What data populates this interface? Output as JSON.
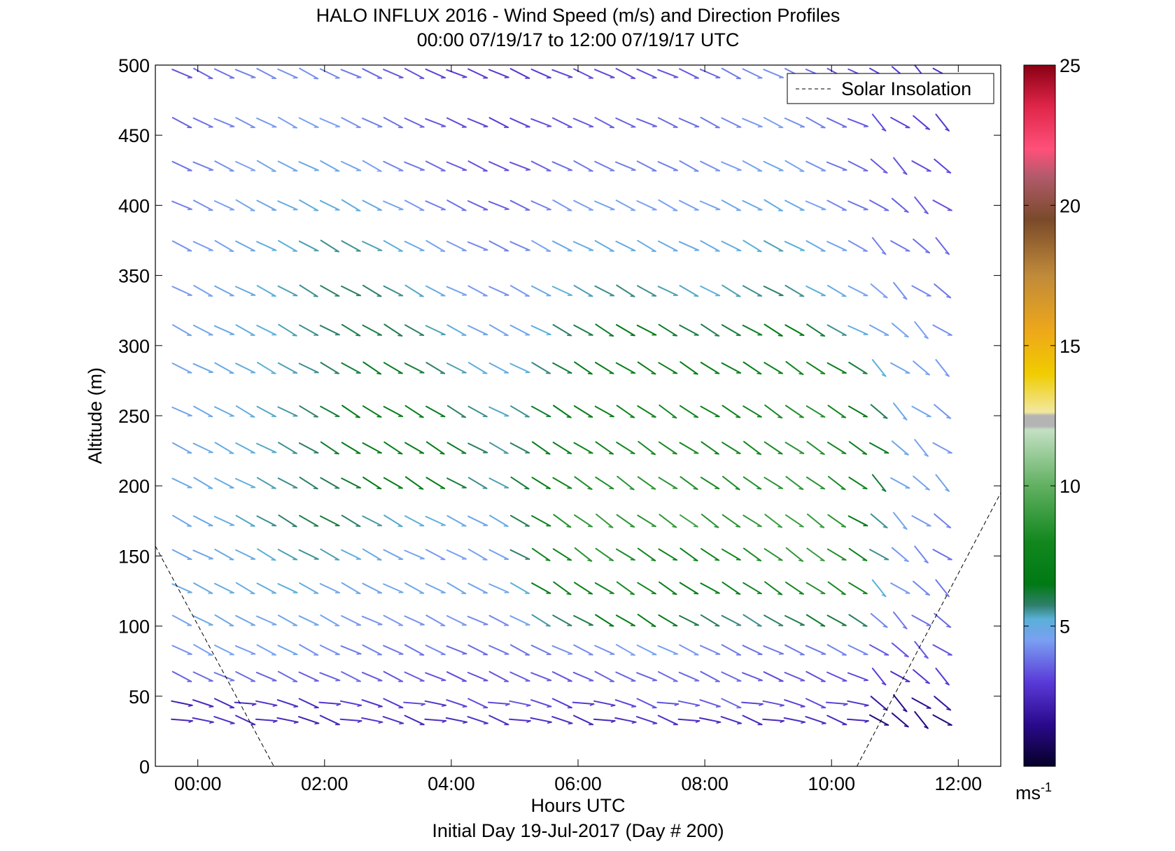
{
  "chart_data": {
    "type": "quiver",
    "title": "HALO INFLUX 2016 - Wind Speed (m/s) and Direction Profiles",
    "subtitle": "00:00 07/19/17 to 12:00 07/19/17  UTC",
    "xlabel": "Hours UTC",
    "xlabel2": "Initial Day 19-Jul-2017 (Day # 200)",
    "ylabel": "Altitude (m)",
    "xlim": [
      -0.67,
      12.67
    ],
    "ylim": [
      0,
      500
    ],
    "x_ticks": [
      0,
      2,
      4,
      6,
      8,
      10,
      12
    ],
    "x_tick_labels": [
      "00:00",
      "02:00",
      "04:00",
      "06:00",
      "08:00",
      "10:00",
      "12:00"
    ],
    "y_ticks": [
      0,
      50,
      100,
      150,
      200,
      250,
      300,
      350,
      400,
      450,
      500
    ],
    "y_tick_labels": [
      "0",
      "50",
      "100",
      "150",
      "200",
      "250",
      "300",
      "350",
      "400",
      "450",
      "500"
    ],
    "grid": false,
    "legend": {
      "entries": [
        "Solar Insolation"
      ],
      "location": "top-right"
    },
    "colorbar": {
      "range": [
        0,
        25
      ],
      "ticks": [
        5,
        10,
        15,
        20,
        25
      ],
      "tick_labels": [
        "5",
        "10",
        "15",
        "20",
        "25"
      ],
      "unit_label": "ms",
      "unit_exponent": "-1"
    },
    "altitudes": [
      33,
      45,
      64,
      83,
      104,
      127,
      151,
      175,
      202,
      227,
      253,
      284,
      311,
      339,
      371,
      400,
      428,
      459,
      494
    ],
    "time_hours": [
      -0.25,
      0.083,
      0.417,
      0.75,
      1.083,
      1.417,
      1.75,
      2.083,
      2.417,
      2.75,
      3.083,
      3.417,
      3.75,
      4.083,
      4.417,
      4.75,
      5.083,
      5.417,
      5.75,
      6.083,
      6.417,
      6.75,
      7.083,
      7.417,
      7.75,
      8.083,
      8.417,
      8.75,
      9.083,
      9.417,
      9.75,
      10.083,
      10.417,
      10.75,
      11.083,
      11.417,
      11.75
    ],
    "wind_speed_ms": [
      [
        2.4,
        2.6,
        2.6,
        2.5,
        2.6,
        2.4,
        2.2,
        2.3,
        2.7,
        2.8,
        2.6,
        2.4,
        2.6,
        2.5,
        2.6,
        2.6,
        2.7,
        2.6,
        2.5,
        2.4,
        2.4,
        2.6,
        2.7,
        2.6,
        2.6,
        2.5,
        2.5,
        2.4,
        2.5,
        2.6,
        2.5,
        2.4,
        2.4,
        1.2,
        1.5,
        1.3,
        1.2
      ],
      [
        2.2,
        2.4,
        2.5,
        2.6,
        2.8,
        2.6,
        2.5,
        2.8,
        3.0,
        2.7,
        2.9,
        3.2,
        2.7,
        3.1,
        3.2,
        3.2,
        3.3,
        3.2,
        2.9,
        2.9,
        2.8,
        3.1,
        3.3,
        3.3,
        3.4,
        3.4,
        3.6,
        3.1,
        3.2,
        3.0,
        3.2,
        3.1,
        2.7,
        1.9,
        1.5,
        1.6,
        1.8
      ],
      [
        3.5,
        3.6,
        3.8,
        3.6,
        3.5,
        3.6,
        3.4,
        3.5,
        3.6,
        3.4,
        3.3,
        3.4,
        3.3,
        3.2,
        3.2,
        3.3,
        3.4,
        3.4,
        3.3,
        3.4,
        3.5,
        3.5,
        3.5,
        3.6,
        3.6,
        3.5,
        3.6,
        3.4,
        3.2,
        3.3,
        3.2,
        3.2,
        3.1,
        3.0,
        2.6,
        2.8,
        2.9
      ],
      [
        4.1,
        4.3,
        4.4,
        4.2,
        4.4,
        4.6,
        4.1,
        4.1,
        3.8,
        3.9,
        3.8,
        3.7,
        4.0,
        3.6,
        3.6,
        3.8,
        3.7,
        3.8,
        4.1,
        4.0,
        4.1,
        4.3,
        4.4,
        4.4,
        4.2,
        4.0,
        3.8,
        3.7,
        3.8,
        3.8,
        3.8,
        3.9,
        4.0,
        3.4,
        3.3,
        3.4,
        3.3
      ],
      [
        4.4,
        4.7,
        4.7,
        4.6,
        4.5,
        4.7,
        4.6,
        4.4,
        4.2,
        4.1,
        4.2,
        4.1,
        4.1,
        4.2,
        4.0,
        4.0,
        4.5,
        5.5,
        5.8,
        6.1,
        6.5,
        6.8,
        6.7,
        6.4,
        6.1,
        5.9,
        5.7,
        5.6,
        5.8,
        6.0,
        6.3,
        6.2,
        5.9,
        4.0,
        3.8,
        3.7,
        3.6
      ],
      [
        4.8,
        4.8,
        5.0,
        4.9,
        5.1,
        5.2,
        4.9,
        4.6,
        4.6,
        4.5,
        4.6,
        4.7,
        4.6,
        4.7,
        4.5,
        4.6,
        5.2,
        6.6,
        7.3,
        7.5,
        7.8,
        8.2,
        7.6,
        7.1,
        6.9,
        7.0,
        7.2,
        7.4,
        7.7,
        8.0,
        8.3,
        8.1,
        7.5,
        5.2,
        4.2,
        4.0,
        3.8
      ],
      [
        4.6,
        4.6,
        4.8,
        4.9,
        5.2,
        5.4,
        5.6,
        5.4,
        5.0,
        4.8,
        4.6,
        4.4,
        4.2,
        4.3,
        4.4,
        4.6,
        5.8,
        7.6,
        8.0,
        8.5,
        8.6,
        8.2,
        7.9,
        7.6,
        7.4,
        7.7,
        8.0,
        8.2,
        8.6,
        8.8,
        9.0,
        8.3,
        7.4,
        5.6,
        4.2,
        4.0,
        3.7
      ],
      [
        4.7,
        4.8,
        5.0,
        5.3,
        5.6,
        5.8,
        6.0,
        6.2,
        5.8,
        5.5,
        5.3,
        5.1,
        5.0,
        4.8,
        4.7,
        4.9,
        6.0,
        7.2,
        8.4,
        8.8,
        8.9,
        8.6,
        8.6,
        8.8,
        9.2,
        8.5,
        8.6,
        8.8,
        9.0,
        9.1,
        9.0,
        8.6,
        6.5,
        5.6,
        4.5,
        4.2,
        3.9
      ],
      [
        4.8,
        4.8,
        4.9,
        5.1,
        5.4,
        5.6,
        5.8,
        6.0,
        6.3,
        6.6,
        6.8,
        7.0,
        6.8,
        6.2,
        5.6,
        5.4,
        6.2,
        7.0,
        7.8,
        8.2,
        8.4,
        8.6,
        8.7,
        8.6,
        8.4,
        8.1,
        8.2,
        8.4,
        8.6,
        8.7,
        8.6,
        8.2,
        7.5,
        6.2,
        4.6,
        4.5,
        4.6
      ],
      [
        4.6,
        4.7,
        4.9,
        5.1,
        5.3,
        5.6,
        5.9,
        6.3,
        6.6,
        6.9,
        7.0,
        6.9,
        6.7,
        6.4,
        5.9,
        5.5,
        5.9,
        6.8,
        7.2,
        7.6,
        7.8,
        8.0,
        8.1,
        8.1,
        8.0,
        7.8,
        7.8,
        7.9,
        8.2,
        8.6,
        8.4,
        8.0,
        7.3,
        6.4,
        4.6,
        4.4,
        4.2
      ],
      [
        4.6,
        4.7,
        4.9,
        5.0,
        5.3,
        5.5,
        5.8,
        6.2,
        6.5,
        6.7,
        6.8,
        6.8,
        6.4,
        5.9,
        5.6,
        5.3,
        5.6,
        6.3,
        6.7,
        7.0,
        7.4,
        7.7,
        7.8,
        7.8,
        7.6,
        7.4,
        7.3,
        7.4,
        7.8,
        8.2,
        8.4,
        7.8,
        6.9,
        5.9,
        4.7,
        4.5,
        4.2
      ],
      [
        4.5,
        4.7,
        4.8,
        5.0,
        5.2,
        5.4,
        5.6,
        5.9,
        6.2,
        6.4,
        6.4,
        6.2,
        5.8,
        5.4,
        5.0,
        4.9,
        5.1,
        5.7,
        6.2,
        6.6,
        6.9,
        7.2,
        7.3,
        7.2,
        7.0,
        6.8,
        6.9,
        7.1,
        7.5,
        7.8,
        7.6,
        7.1,
        6.2,
        5.2,
        4.6,
        4.4,
        4.2
      ],
      [
        4.4,
        4.6,
        4.8,
        5.0,
        5.2,
        5.4,
        5.6,
        5.8,
        6.0,
        6.1,
        6.0,
        5.8,
        5.4,
        5.0,
        4.6,
        4.5,
        4.6,
        5.2,
        5.8,
        6.1,
        6.3,
        6.5,
        6.5,
        6.3,
        6.1,
        6.0,
        6.2,
        6.4,
        6.7,
        6.6,
        6.2,
        5.6,
        5.0,
        4.6,
        4.4,
        4.3,
        4.1
      ],
      [
        4.2,
        4.4,
        4.6,
        4.9,
        5.2,
        5.4,
        5.6,
        5.8,
        5.9,
        5.8,
        5.6,
        5.3,
        4.9,
        4.5,
        4.2,
        4.1,
        4.2,
        4.7,
        5.2,
        5.4,
        5.6,
        5.7,
        5.6,
        5.4,
        5.3,
        5.2,
        5.4,
        5.6,
        5.8,
        5.6,
        5.2,
        4.8,
        4.5,
        4.3,
        4.1,
        4.0,
        3.8
      ],
      [
        4.1,
        4.3,
        4.5,
        4.7,
        5.0,
        5.2,
        5.4,
        5.6,
        5.6,
        5.4,
        5.1,
        4.8,
        4.5,
        4.2,
        4.0,
        3.9,
        4.0,
        4.3,
        4.7,
        4.9,
        5.0,
        5.0,
        4.9,
        4.8,
        4.8,
        4.8,
        5.0,
        5.2,
        5.4,
        5.2,
        4.8,
        4.4,
        4.1,
        3.9,
        3.8,
        3.7,
        3.6
      ],
      [
        3.9,
        4.1,
        4.3,
        4.5,
        4.7,
        4.9,
        5.0,
        5.1,
        5.0,
        4.8,
        4.5,
        4.2,
        3.9,
        3.7,
        3.5,
        3.5,
        3.6,
        3.9,
        4.2,
        4.3,
        4.4,
        4.4,
        4.3,
        4.3,
        4.3,
        4.4,
        4.6,
        4.8,
        5.0,
        4.8,
        4.4,
        4.0,
        3.8,
        3.6,
        3.5,
        3.4,
        3.3
      ],
      [
        3.7,
        3.9,
        4.1,
        4.3,
        4.5,
        4.6,
        4.7,
        4.7,
        4.5,
        4.3,
        4.0,
        3.8,
        3.6,
        3.4,
        3.3,
        3.2,
        3.3,
        3.5,
        3.7,
        3.8,
        3.9,
        3.9,
        3.9,
        3.9,
        4.0,
        4.1,
        4.3,
        4.5,
        4.6,
        4.4,
        4.1,
        3.8,
        3.6,
        3.4,
        3.3,
        3.2,
        3.1
      ],
      [
        3.5,
        3.7,
        3.9,
        4.1,
        4.2,
        4.3,
        4.4,
        4.3,
        4.1,
        3.9,
        3.7,
        3.5,
        3.3,
        3.2,
        3.1,
        3.0,
        3.1,
        3.2,
        3.3,
        3.4,
        3.5,
        3.5,
        3.5,
        3.6,
        3.7,
        3.8,
        4.0,
        4.2,
        4.3,
        4.1,
        3.9,
        3.6,
        3.4,
        3.2,
        3.1,
        3.0,
        2.9
      ],
      [
        3.3,
        3.5,
        3.7,
        3.9,
        4.0,
        4.1,
        4.1,
        4.0,
        3.8,
        3.6,
        3.4,
        3.3,
        3.1,
        3.0,
        2.9,
        2.8,
        2.9,
        3.0,
        3.1,
        3.2,
        3.2,
        3.2,
        3.3,
        3.3,
        3.4,
        3.6,
        3.8,
        4.0,
        4.1,
        3.9,
        3.7,
        3.4,
        3.2,
        3.0,
        2.9,
        2.8,
        2.7
      ]
    ],
    "solar_insolation_line": [
      [
        -0.67,
        157
      ],
      [
        1.2,
        0
      ],
      [
        10.4,
        0
      ],
      [
        12.67,
        195
      ]
    ]
  }
}
